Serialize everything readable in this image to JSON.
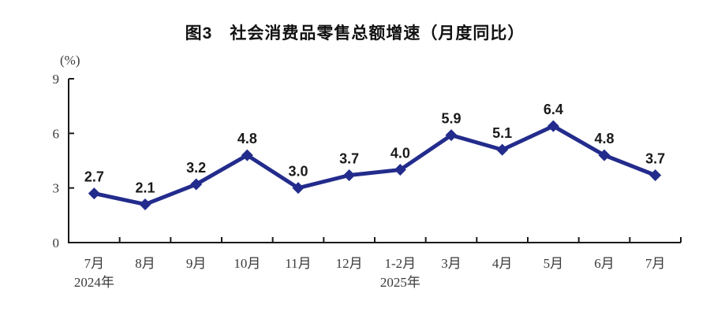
{
  "figure": {
    "title": "图3　社会消费品零售总额增速（月度同比）",
    "unit_label": "(%)"
  },
  "chart_data": {
    "type": "line",
    "title": "图3　社会消费品零售总额增速（月度同比）",
    "categories": [
      "7月",
      "8月",
      "9月",
      "10月",
      "11月",
      "12月",
      "1-2月",
      "3月",
      "4月",
      "5月",
      "6月",
      "7月"
    ],
    "values": [
      2.7,
      2.1,
      3.2,
      4.8,
      3.0,
      3.7,
      4.0,
      5.9,
      5.1,
      6.4,
      4.8,
      3.7
    ],
    "value_labels": [
      "2.7",
      "2.1",
      "3.2",
      "4.8",
      "3.0",
      "3.7",
      "4.0",
      "5.9",
      "5.1",
      "6.4",
      "4.8",
      "3.7"
    ],
    "xlabel": "",
    "ylabel": "(%)",
    "ylim": [
      0,
      9
    ],
    "yticks": [
      0,
      3,
      6,
      9
    ],
    "year_labels": [
      {
        "index": 0,
        "text": "2024年"
      },
      {
        "index": 6,
        "text": "2025年"
      }
    ],
    "grid": false,
    "legend_position": "none",
    "line_color": "#232C8C",
    "marker": "diamond",
    "axis_color": "#1a1a1a",
    "label_color": "#1a1a1a"
  }
}
